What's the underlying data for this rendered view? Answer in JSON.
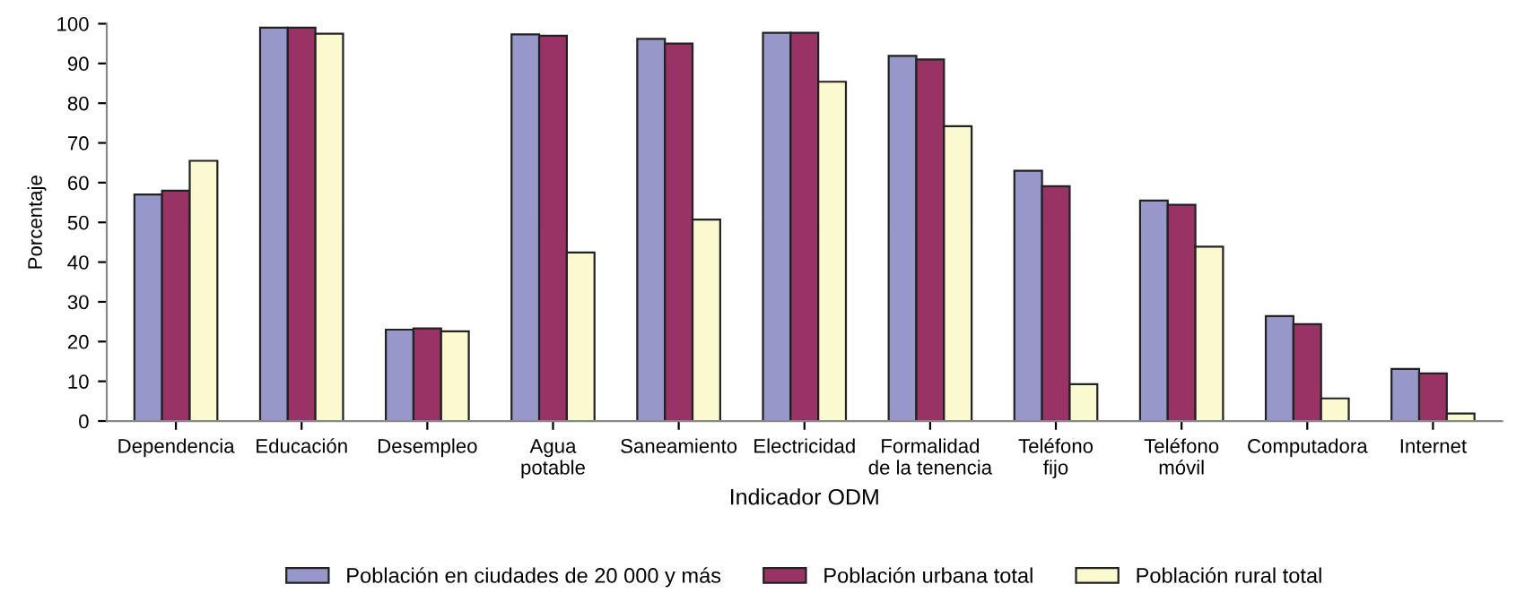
{
  "chart_data": {
    "type": "bar",
    "xlabel": "Indicador ODM",
    "ylabel": "Porcentaje",
    "categories": [
      "Dependencia",
      "Educación",
      "Desempleo",
      "Agua\npotable",
      "Saneamiento",
      "Electricidad",
      "Formalidad\nde la tenencia",
      "Teléfono\nfijo",
      "Teléfono\nmóvil",
      "Computadora",
      "Internet"
    ],
    "series": [
      {
        "name": "Población en ciudades de 20 000 y más",
        "color": "#9797c9",
        "values": [
          57,
          99,
          23,
          97.3,
          96.2,
          97.7,
          91.9,
          63,
          55.5,
          26.4,
          13.1
        ]
      },
      {
        "name": "Población urbana total",
        "color": "#993366",
        "values": [
          58,
          99,
          23.3,
          97,
          95,
          97.7,
          91,
          59.1,
          54.4,
          24.4,
          12
        ]
      },
      {
        "name": "Población rural total",
        "color": "#fbf9d0",
        "values": [
          65.5,
          97.5,
          22.6,
          42.4,
          50.7,
          85.4,
          74.2,
          9.3,
          43.9,
          5.7,
          1.9
        ]
      }
    ],
    "ylim": [
      0,
      100
    ],
    "yticks": [
      0,
      10,
      20,
      30,
      40,
      50,
      60,
      70,
      80,
      90,
      100
    ],
    "grid": false,
    "legend": "bottom"
  }
}
